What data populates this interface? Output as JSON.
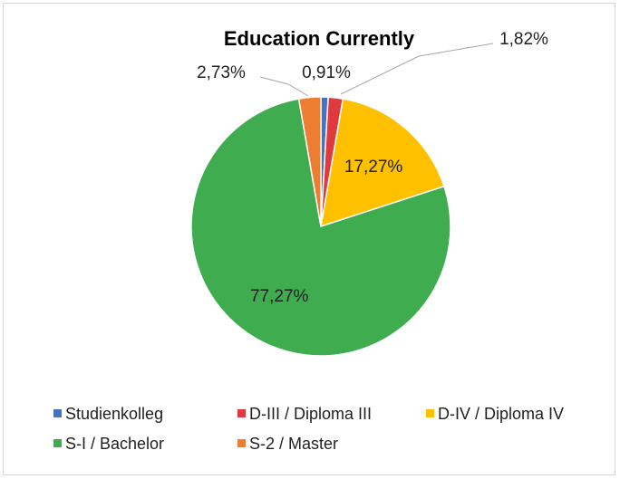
{
  "chart_data": {
    "type": "pie",
    "title": "Education Currently",
    "slices": [
      {
        "label": "Studienkolleg",
        "value": 0.91,
        "display": "0,91%",
        "color": "#4472c4"
      },
      {
        "label": "D-III / Diploma III",
        "value": 1.82,
        "display": "1,82%",
        "color": "#e0393e"
      },
      {
        "label": "D-IV / Diploma IV",
        "value": 17.27,
        "display": "17,27%",
        "color": "#ffc000"
      },
      {
        "label": "S-I / Bachelor",
        "value": 77.27,
        "display": "77,27%",
        "color": "#3eac4f"
      },
      {
        "label": "S-2 / Master",
        "value": 2.73,
        "display": "2,73%",
        "color": "#ed7d31"
      }
    ],
    "legend_position": "bottom"
  }
}
